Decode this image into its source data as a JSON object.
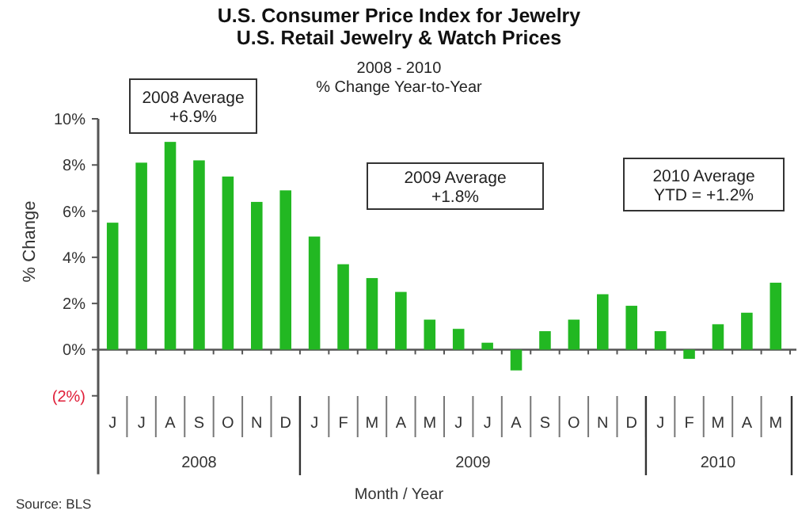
{
  "chart_data": {
    "type": "bar",
    "title": "U.S. Consumer Price Index for Jewelry\nU.S. Retail Jewelry & Watch Prices",
    "subtitle": "2008 - 2010\n% Change Year-to-Year",
    "xlabel": "Month / Year",
    "ylabel": "% Change",
    "categories": [
      "J",
      "J",
      "A",
      "S",
      "O",
      "N",
      "D",
      "J",
      "F",
      "M",
      "A",
      "M",
      "J",
      "J",
      "A",
      "S",
      "O",
      "N",
      "D",
      "J",
      "F",
      "M",
      "A",
      "M"
    ],
    "values": [
      5.5,
      8.1,
      9.0,
      8.2,
      7.5,
      6.4,
      6.9,
      4.9,
      3.7,
      3.1,
      2.5,
      1.3,
      0.9,
      0.3,
      -0.9,
      0.8,
      1.3,
      2.4,
      1.9,
      0.8,
      -0.4,
      1.1,
      1.6,
      2.9
    ],
    "color": "#22b822",
    "ylim": [
      -5.4,
      10
    ],
    "ref_lines": [
      {
        "axis": "y",
        "value": 0
      }
    ],
    "yticks": [
      {
        "value": -2,
        "label": "(2%)"
      },
      {
        "value": 0,
        "label": "0%"
      },
      {
        "value": 2,
        "label": "2%"
      },
      {
        "value": 4,
        "label": "4%"
      },
      {
        "value": 6,
        "label": "6%"
      },
      {
        "value": 8,
        "label": "8%"
      },
      {
        "value": 10,
        "label": "10%"
      }
    ],
    "grid": false,
    "annotations": [
      "2008 Average\n+6.9%",
      "2009 Average\n+1.8%",
      "2010 Average\nYTD = +1.2%",
      "Source: BLS",
      "2008",
      "2009",
      "2010"
    ]
  }
}
